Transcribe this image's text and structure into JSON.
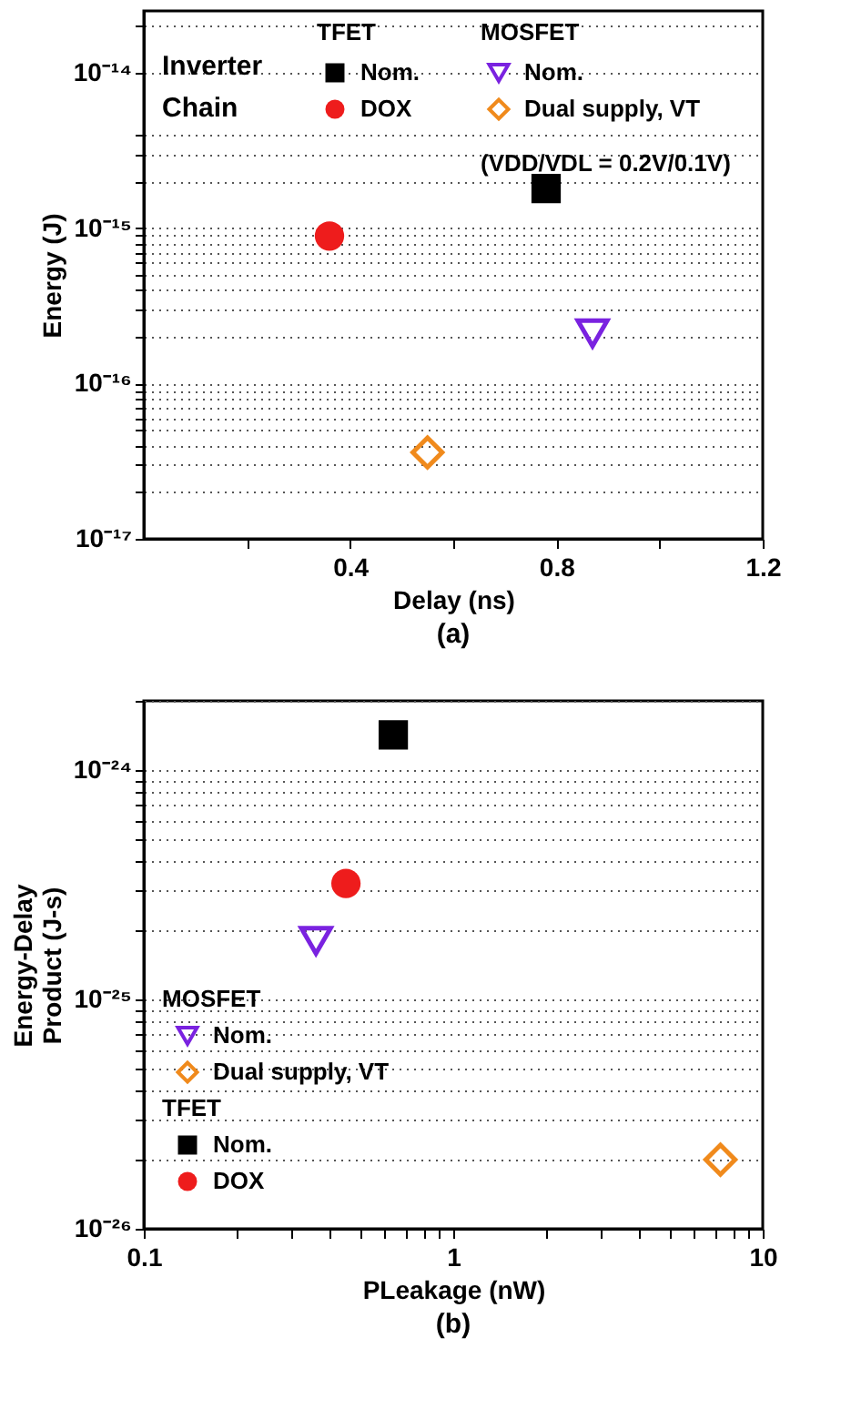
{
  "chart_data": [
    {
      "type": "scatter",
      "title": "(a)",
      "xlabel": "Delay (ns)",
      "ylabel": "Energy (J)",
      "log": "y",
      "grid": "y",
      "legend": "top",
      "xlim": [
        0,
        1.2
      ],
      "xticks": [
        {
          "value": 0.2,
          "label": null
        },
        0.4,
        {
          "value": 0.6,
          "label": null
        },
        0.8,
        {
          "value": 1.0,
          "label": null
        },
        1.2
      ],
      "ylim": [
        1e-17,
        2.5e-14
      ],
      "yticks": [
        {
          "value": 1e-17,
          "label": "10⁻¹⁷"
        },
        {
          "value": 2e-17,
          "label": null
        },
        {
          "value": 3e-17,
          "label": null
        },
        {
          "value": 4e-17,
          "label": null
        },
        {
          "value": 5e-17,
          "label": null
        },
        {
          "value": 6e-17,
          "label": null
        },
        {
          "value": 7e-17,
          "label": null
        },
        {
          "value": 8e-17,
          "label": null
        },
        {
          "value": 9e-17,
          "label": null
        },
        {
          "value": 1e-16,
          "label": "10⁻¹⁶"
        },
        {
          "value": 2e-16,
          "label": null
        },
        {
          "value": 3e-16,
          "label": null
        },
        {
          "value": 4e-16,
          "label": null
        },
        {
          "value": 5e-16,
          "label": null
        },
        {
          "value": 6e-16,
          "label": null
        },
        {
          "value": 7e-16,
          "label": null
        },
        {
          "value": 8e-16,
          "label": null
        },
        {
          "value": 9e-16,
          "label": null
        },
        {
          "value": 1e-15,
          "label": "10⁻¹⁵"
        },
        {
          "value": 2e-15,
          "label": null
        },
        {
          "value": 3e-15,
          "label": null
        },
        {
          "value": 4e-15,
          "label": null
        },
        {
          "value": 1e-14,
          "label": "10⁻¹⁴"
        },
        {
          "value": 2e-14,
          "label": null
        }
      ],
      "annotations": [
        "Inverter Chain",
        "TFET",
        "MOSFET",
        "(VDD/VDL = 0.2V/0.1V)"
      ],
      "series": [
        {
          "name": "Nom.",
          "color": "#000000",
          "marker": "square",
          "x": [
            0.78
          ],
          "values": [
            1.8e-15
          ]
        },
        {
          "name": "DOX",
          "color": "#ee1c1c",
          "marker": "circle",
          "x": [
            0.36
          ],
          "values": [
            8.9e-16
          ]
        },
        {
          "name": "Nom.",
          "color": "#7a22e0",
          "marker": "triangle",
          "x": [
            0.87
          ],
          "values": [
            2.1e-16
          ]
        },
        {
          "name": "Dual supply, VT",
          "color": "#f08a1c",
          "marker": "diamond",
          "x": [
            0.55
          ],
          "values": [
            3.6e-17
          ]
        }
      ]
    },
    {
      "type": "scatter",
      "title": "(b)",
      "xlabel": "PLeakage (nW)",
      "ylabel": "Energy-Delay Product (J-s)",
      "log": "xy",
      "grid": "y",
      "legend": "bottom left",
      "xlim": [
        0.1,
        10
      ],
      "xticks": [
        {
          "value": 0.1,
          "label": "0.1"
        },
        {
          "value": 0.2,
          "label": null
        },
        {
          "value": 0.3,
          "label": null
        },
        {
          "value": 0.4,
          "label": null
        },
        {
          "value": 0.5,
          "label": null
        },
        {
          "value": 0.6,
          "label": null
        },
        {
          "value": 0.7,
          "label": null
        },
        {
          "value": 0.8,
          "label": null
        },
        {
          "value": 0.9,
          "label": null
        },
        1,
        {
          "value": 2,
          "label": null
        },
        {
          "value": 3,
          "label": null
        },
        {
          "value": 4,
          "label": null
        },
        {
          "value": 5,
          "label": null
        },
        {
          "value": 6,
          "label": null
        },
        {
          "value": 7,
          "label": null
        },
        {
          "value": 8,
          "label": null
        },
        {
          "value": 9,
          "label": null
        },
        10
      ],
      "ylim": [
        1e-26,
        2e-24
      ],
      "yticks": [
        {
          "value": 1e-26,
          "label": "10⁻²⁶"
        },
        {
          "value": 2e-26,
          "label": null
        },
        {
          "value": 3e-26,
          "label": null
        },
        {
          "value": 4e-26,
          "label": null
        },
        {
          "value": 5e-26,
          "label": null
        },
        {
          "value": 6e-26,
          "label": null
        },
        {
          "value": 7e-26,
          "label": null
        },
        {
          "value": 8e-26,
          "label": null
        },
        {
          "value": 9e-26,
          "label": null
        },
        {
          "value": 1e-25,
          "label": "10⁻²⁵"
        },
        {
          "value": 2e-25,
          "label": null
        },
        {
          "value": 3e-25,
          "label": null
        },
        {
          "value": 4e-25,
          "label": null
        },
        {
          "value": 5e-25,
          "label": null
        },
        {
          "value": 6e-25,
          "label": null
        },
        {
          "value": 7e-25,
          "label": null
        },
        {
          "value": 8e-25,
          "label": null
        },
        {
          "value": 9e-25,
          "label": null
        },
        {
          "value": 1e-24,
          "label": "10⁻²⁴"
        },
        {
          "value": 2e-24,
          "label": null
        }
      ],
      "annotations": [
        "MOSFET",
        "TFET"
      ],
      "series": [
        {
          "name": "Nom.",
          "color": "#000000",
          "marker": "square",
          "x": [
            0.64
          ],
          "values": [
            1.42e-24
          ]
        },
        {
          "name": "DOX",
          "color": "#ee1c1c",
          "marker": "circle",
          "x": [
            0.45
          ],
          "values": [
            3.2e-25
          ]
        },
        {
          "name": "Nom.",
          "color": "#7a22e0",
          "marker": "triangle",
          "x": [
            0.36
          ],
          "values": [
            1.8e-25
          ]
        },
        {
          "name": "Dual supply, VT",
          "color": "#f08a1c",
          "marker": "diamond",
          "x": [
            7.3
          ],
          "values": [
            2e-26
          ]
        }
      ]
    }
  ]
}
